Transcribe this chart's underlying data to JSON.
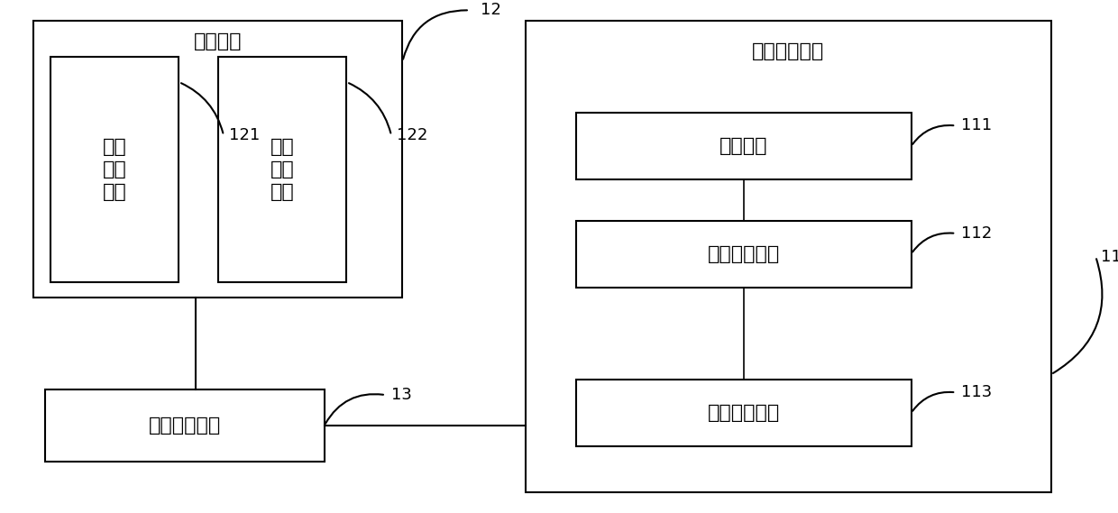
{
  "bg_color": "#ffffff",
  "ec": "#000000",
  "fc": "#ffffff",
  "tc": "#000000",
  "lw": 1.5,
  "lw_thin": 1.2,
  "video_outer": [
    0.03,
    0.42,
    0.33,
    0.54
  ],
  "video_label": "视频模块",
  "video_capture": [
    0.045,
    0.45,
    0.115,
    0.44
  ],
  "video_capture_label": "视频\n采集\n单元",
  "video_record": [
    0.195,
    0.45,
    0.115,
    0.44
  ],
  "video_record_label": "视频\n录制\n单元",
  "ref_121": "121",
  "ref_122": "122",
  "ref_12": "12",
  "network": [
    0.04,
    0.1,
    0.25,
    0.14
  ],
  "network_label": "网络交换模块",
  "ref_13": "13",
  "logic_outer": [
    0.47,
    0.04,
    0.47,
    0.92
  ],
  "logic_label": "逻辑控制模块",
  "ref_11": "11",
  "display": [
    0.515,
    0.65,
    0.3,
    0.13
  ],
  "display_label": "屏显单元",
  "ref_111": "111",
  "cpu": [
    0.515,
    0.44,
    0.3,
    0.13
  ],
  "cpu_label": "中央处理单元",
  "ref_112": "112",
  "data": [
    0.515,
    0.13,
    0.3,
    0.13
  ],
  "data_label": "数据采集单元",
  "ref_113": "113",
  "fs_large": 16,
  "fs_medium": 14,
  "fs_ref": 13
}
